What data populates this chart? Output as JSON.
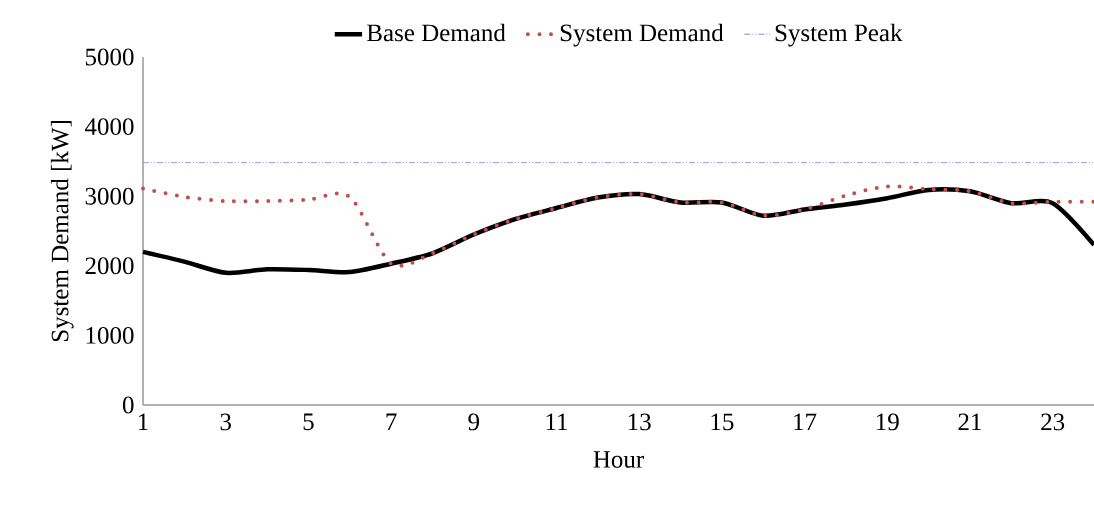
{
  "chart_data": {
    "type": "line",
    "xlabel": "Hour",
    "ylabel": "System Demand [kW]",
    "x": [
      1,
      2,
      3,
      4,
      5,
      6,
      7,
      8,
      9,
      10,
      11,
      12,
      13,
      14,
      15,
      16,
      17,
      18,
      19,
      20,
      21,
      22,
      23,
      24
    ],
    "xlim": [
      1,
      24
    ],
    "xticks": [
      1,
      3,
      5,
      7,
      9,
      11,
      13,
      15,
      17,
      19,
      21,
      23
    ],
    "ylim": [
      0,
      5000
    ],
    "yticks": [
      0,
      1000,
      2000,
      3000,
      4000,
      5000
    ],
    "series": [
      {
        "name": "Base Demand",
        "color": "#000000",
        "line_style": "solid",
        "values": [
          2200,
          2060,
          1900,
          1950,
          1940,
          1910,
          2030,
          2180,
          2450,
          2670,
          2830,
          2980,
          3030,
          2910,
          2910,
          2720,
          2810,
          2880,
          2970,
          3090,
          3070,
          2900,
          2900,
          2300
        ]
      },
      {
        "name": "System Demand",
        "color": "#c0504d",
        "line_style": "dotted",
        "values": [
          3110,
          2990,
          2930,
          2930,
          2950,
          2990,
          2030,
          2180,
          2450,
          2670,
          2830,
          2980,
          3030,
          2910,
          2910,
          2720,
          2810,
          3010,
          3140,
          3100,
          3070,
          2900,
          2920,
          2920
        ]
      }
    ],
    "ref_lines": [
      {
        "axis": "y",
        "value": 3480,
        "label": "System Peak",
        "color": "#9f7fcf",
        "line_style": "dashdotdot"
      }
    ],
    "legend": "top",
    "grid": false
  }
}
